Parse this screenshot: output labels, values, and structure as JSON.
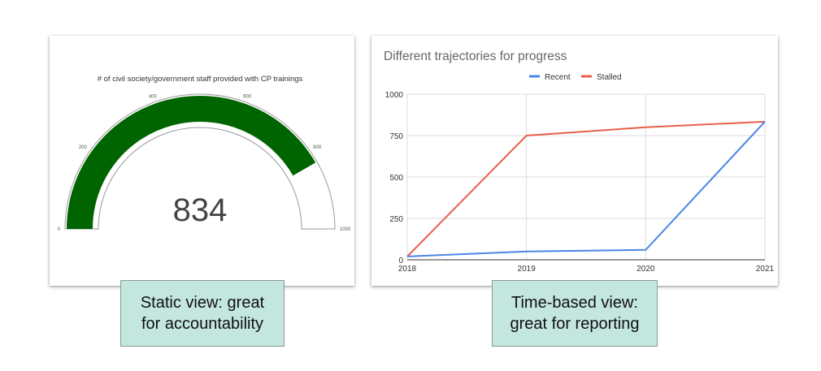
{
  "chart_data": [
    {
      "type": "gauge",
      "title": "# of civil society/government staff provided with CP trainings",
      "value": 834,
      "value_label": "834",
      "range": [
        0,
        1000
      ],
      "tick_labels": [
        "0",
        "200",
        "400",
        "600",
        "800",
        "1000"
      ],
      "tick_values": [
        0,
        200,
        400,
        600,
        800,
        1000
      ],
      "colors": {
        "fill": "#006400",
        "outline": "#999999",
        "value_text": "#444444"
      }
    },
    {
      "type": "line",
      "title": "Different trajectories for progress",
      "x": [
        2018,
        2019,
        2020,
        2021
      ],
      "x_tick_labels": [
        "2018",
        "2019",
        "2020",
        "2021"
      ],
      "y_tick_labels": [
        "0",
        "250",
        "500",
        "750",
        "1000"
      ],
      "y_tick_values": [
        0,
        250,
        500,
        750,
        1000
      ],
      "ylim": [
        0,
        1000
      ],
      "grid": true,
      "legend_position": "top",
      "series": [
        {
          "name": "Recent",
          "color": "#4a86e8",
          "values": [
            20,
            50,
            60,
            834
          ]
        },
        {
          "name": "Stalled",
          "color": "#e8604a",
          "values": [
            20,
            750,
            800,
            834
          ]
        }
      ]
    }
  ],
  "captions": {
    "left": [
      "Static view: great",
      "for accountability"
    ],
    "right": [
      "Time-based view:",
      "great for reporting"
    ]
  }
}
